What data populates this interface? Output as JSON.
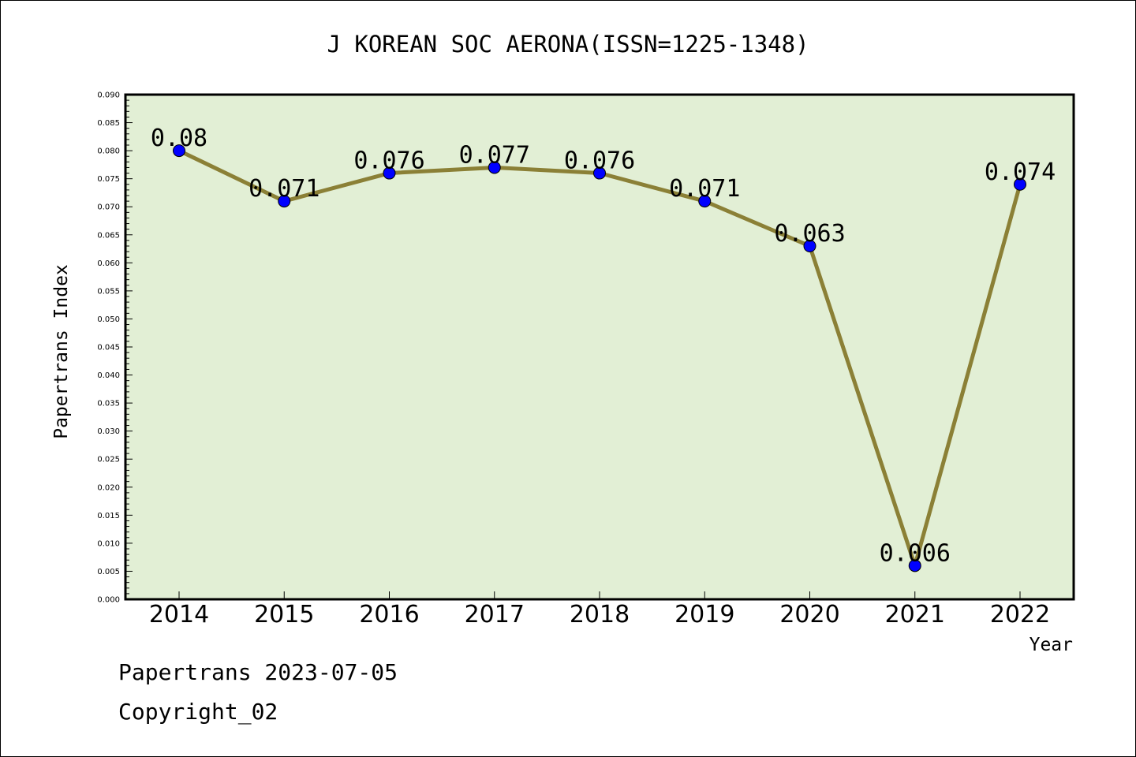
{
  "chart_data": {
    "type": "line",
    "title": "J KOREAN SOC AERONA(ISSN=1225-1348)",
    "xlabel": "Year",
    "ylabel": "Papertrans Index",
    "categories": [
      "2014",
      "2015",
      "2016",
      "2017",
      "2018",
      "2019",
      "2020",
      "2021",
      "2022"
    ],
    "series": [
      {
        "values": [
          0.08,
          0.071,
          0.076,
          0.077,
          0.076,
          0.071,
          0.063,
          0.006,
          0.074
        ],
        "labels": [
          "0.08",
          "0.071",
          "0.076",
          "0.077",
          "0.076",
          "0.071",
          "0.063",
          "0.006",
          "0.074"
        ]
      }
    ],
    "ylim": [
      0,
      0.09
    ],
    "ytick_step": 0.005,
    "grid": false,
    "colors": {
      "plot_background": "#e2efd5",
      "line": "#8b8036",
      "marker": "#0000ff"
    }
  },
  "footer": {
    "line1": "Papertrans 2023-07-05",
    "line2": "Copyright_02"
  }
}
